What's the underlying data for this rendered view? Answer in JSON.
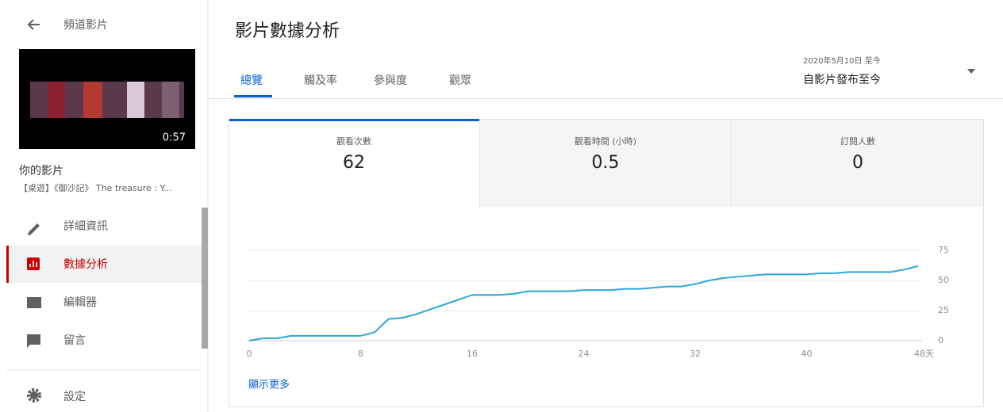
{
  "sidebar": {
    "back_title": "頻道影片",
    "thumbnail_duration": "0:57",
    "section_title": "你的影片",
    "video_title": "【桌遊】《御沙記》 The treasure : Y...",
    "nav": [
      "詳細資訊",
      "數據分析",
      "編輯器",
      "留言"
    ],
    "settings": "設定"
  },
  "header": {
    "title": "影片數據分析",
    "tabs": [
      "總覽",
      "觸及率",
      "參與度",
      "觀眾"
    ],
    "date_range_caption": "2020年5月10日 至今",
    "date_range": "自影片發布至今"
  },
  "metrics": [
    {
      "label": "觀看次數",
      "value": 62
    },
    {
      "label": "觀看時間 (小時)",
      "value": 0.5
    },
    {
      "label": "訂閱人數",
      "value": 0
    }
  ],
  "chart": {
    "type": "line",
    "color": "#2aa8d6",
    "x": [
      0,
      1,
      2,
      3,
      4,
      5,
      6,
      7,
      8,
      9,
      10,
      11,
      12,
      13,
      14,
      15,
      16,
      17,
      18,
      19,
      20,
      21,
      22,
      23,
      24,
      25,
      26,
      27,
      28,
      29,
      30,
      31,
      32,
      33,
      34,
      35,
      36,
      37,
      38,
      39,
      40,
      41,
      42,
      43,
      44,
      45,
      46,
      47,
      48
    ],
    "values": [
      0,
      2,
      2,
      4,
      4,
      4,
      4,
      4,
      4,
      7,
      18,
      19,
      22,
      26,
      30,
      34,
      38,
      38,
      38,
      39,
      41,
      41,
      41,
      41,
      42,
      42,
      42,
      43,
      43,
      44,
      45,
      45,
      47,
      50,
      52,
      53,
      54,
      55,
      55,
      55,
      55,
      56,
      56,
      57,
      57,
      57,
      57,
      59,
      62
    ],
    "xlim": [
      0,
      48
    ],
    "ylim": [
      0,
      75
    ],
    "xticks": [
      0,
      8,
      16,
      24,
      32,
      40,
      {
        "value": 48,
        "label": "48天"
      }
    ],
    "yticks": [
      0,
      25,
      50,
      75
    ],
    "grid": true
  },
  "show_more": "顯示更多"
}
